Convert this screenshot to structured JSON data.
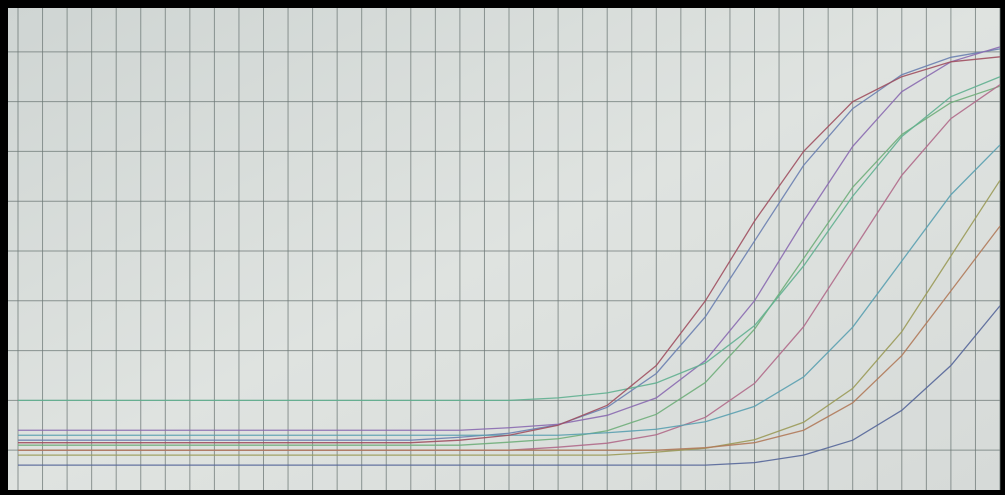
{
  "chart_data": {
    "type": "line",
    "x": [
      0,
      2,
      4,
      6,
      8,
      10,
      12,
      14,
      16,
      18,
      20,
      22,
      24,
      26,
      28,
      30,
      32,
      34,
      36,
      38,
      40
    ],
    "xlim": [
      0,
      40
    ],
    "xticks": [
      0,
      1,
      2,
      3,
      4,
      5,
      6,
      7,
      8,
      9,
      10,
      11,
      12,
      13,
      14,
      15,
      16,
      17,
      18,
      19,
      20,
      21,
      22,
      23,
      24,
      25,
      26,
      27,
      28,
      29,
      30,
      31,
      32,
      33,
      34,
      35,
      36,
      37,
      38,
      39,
      40
    ],
    "ylim": [
      -0.8,
      8.8
    ],
    "yticks": [
      0,
      1,
      2,
      3,
      4,
      5,
      6,
      7,
      8
    ],
    "grid": true,
    "series": [
      {
        "color": "#6a7fb0",
        "values": [
          0.2,
          0.2,
          0.2,
          0.2,
          0.2,
          0.2,
          0.2,
          0.2,
          0.2,
          0.26,
          0.34,
          0.51,
          0.86,
          1.54,
          2.68,
          4.2,
          5.72,
          6.86,
          7.54,
          7.89,
          8.06
        ]
      },
      {
        "color": "#6fae7a",
        "values": [
          0.1,
          0.1,
          0.1,
          0.1,
          0.1,
          0.1,
          0.1,
          0.1,
          0.1,
          0.1,
          0.16,
          0.23,
          0.39,
          0.72,
          1.36,
          2.43,
          3.85,
          5.28,
          6.34,
          6.98,
          7.31
        ]
      },
      {
        "color": "#b06a8a",
        "values": [
          0,
          0,
          0,
          0,
          0,
          0,
          0,
          0,
          0,
          0,
          0,
          0.06,
          0.14,
          0.31,
          0.66,
          1.34,
          2.48,
          4,
          5.52,
          6.66,
          7.34
        ]
      },
      {
        "color": "#5aa0b0",
        "values": [
          0.3,
          0.3,
          0.3,
          0.3,
          0.3,
          0.3,
          0.3,
          0.3,
          0.3,
          0.3,
          0.3,
          0.3,
          0.35,
          0.42,
          0.57,
          0.88,
          1.47,
          2.47,
          3.8,
          5.13,
          6.13
        ]
      },
      {
        "color": "#9a9a58",
        "values": [
          -0.1,
          -0.1,
          -0.1,
          -0.1,
          -0.1,
          -0.1,
          -0.1,
          -0.1,
          -0.1,
          -0.1,
          -0.1,
          -0.1,
          -0.1,
          -0.04,
          0.04,
          0.21,
          0.56,
          1.24,
          2.38,
          3.9,
          5.42
        ]
      },
      {
        "color": "#8a6ab0",
        "values": [
          0.4,
          0.4,
          0.4,
          0.4,
          0.4,
          0.4,
          0.4,
          0.4,
          0.4,
          0.4,
          0.45,
          0.52,
          0.7,
          1.05,
          1.8,
          3.0,
          4.6,
          6.1,
          7.2,
          7.8,
          8.1
        ]
      },
      {
        "color": "#60b090",
        "values": [
          1.0,
          1.0,
          1.0,
          1.0,
          1.0,
          1.0,
          1.0,
          1.0,
          1.0,
          1.0,
          1.0,
          1.05,
          1.15,
          1.35,
          1.75,
          2.5,
          3.7,
          5.1,
          6.3,
          7.1,
          7.5
        ]
      },
      {
        "color": "#b07a5a",
        "values": [
          0,
          0,
          0,
          0,
          0,
          0,
          0,
          0,
          0,
          0,
          0,
          0,
          0,
          0,
          0.05,
          0.15,
          0.4,
          0.95,
          1.9,
          3.2,
          4.5
        ]
      },
      {
        "color": "#556699",
        "values": [
          -0.3,
          -0.3,
          -0.3,
          -0.3,
          -0.3,
          -0.3,
          -0.3,
          -0.3,
          -0.3,
          -0.3,
          -0.3,
          -0.3,
          -0.3,
          -0.3,
          -0.3,
          -0.25,
          -0.1,
          0.2,
          0.8,
          1.7,
          2.9
        ]
      },
      {
        "color": "#a05060",
        "values": [
          0.15,
          0.15,
          0.15,
          0.15,
          0.15,
          0.15,
          0.15,
          0.15,
          0.15,
          0.2,
          0.3,
          0.5,
          0.9,
          1.7,
          3.0,
          4.6,
          6.0,
          7.0,
          7.5,
          7.8,
          7.9
        ]
      }
    ]
  }
}
